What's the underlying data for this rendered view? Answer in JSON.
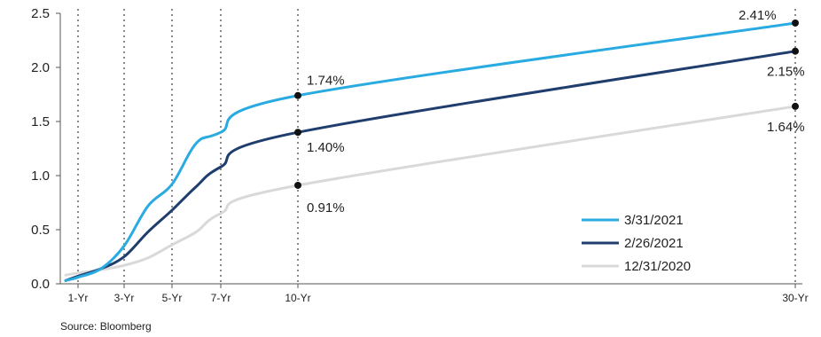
{
  "chart_data": {
    "type": "line",
    "x": [
      "1-Yr",
      "3-Yr",
      "5-Yr",
      "7-Yr",
      "10-Yr",
      "30-Yr"
    ],
    "ylim": [
      0,
      2.5
    ],
    "yticks": [
      "0.0",
      "0.5",
      "1.0",
      "1.5",
      "2.0",
      "2.5"
    ],
    "grid": "vertical dotted lines at maturities",
    "legend_position": "bottom-right",
    "series": [
      {
        "name": "3/31/2021",
        "color": "#29abe2",
        "points": [
          [
            0.3,
            0.03
          ],
          [
            1,
            0.06
          ],
          [
            2,
            0.14
          ],
          [
            3,
            0.35
          ],
          [
            4,
            0.72
          ],
          [
            5,
            0.92
          ],
          [
            6,
            1.3
          ],
          [
            7,
            1.4
          ],
          [
            10,
            1.74
          ],
          [
            30,
            2.41
          ]
        ],
        "labels": [
          {
            "x": 10,
            "y": 1.74,
            "text": "1.74%"
          },
          {
            "x": 30,
            "y": 2.41,
            "text": "2.41%"
          }
        ]
      },
      {
        "name": "2/26/2021",
        "color": "#1f3d6d",
        "points": [
          [
            0.3,
            0.03
          ],
          [
            1,
            0.07
          ],
          [
            2,
            0.14
          ],
          [
            3,
            0.25
          ],
          [
            4,
            0.48
          ],
          [
            5,
            0.68
          ],
          [
            6,
            0.9
          ],
          [
            7,
            1.08
          ],
          [
            10,
            1.4
          ],
          [
            30,
            2.15
          ]
        ],
        "labels": [
          {
            "x": 10,
            "y": 1.4,
            "text": "1.40%"
          },
          {
            "x": 30,
            "y": 2.15,
            "text": "2.15%"
          }
        ]
      },
      {
        "name": "12/31/2020",
        "color": "#d9d9d9",
        "points": [
          [
            0.3,
            0.08
          ],
          [
            1,
            0.1
          ],
          [
            2,
            0.13
          ],
          [
            3,
            0.17
          ],
          [
            4,
            0.24
          ],
          [
            5,
            0.36
          ],
          [
            6,
            0.48
          ],
          [
            7,
            0.65
          ],
          [
            10,
            0.91
          ],
          [
            30,
            1.64
          ]
        ],
        "labels": [
          {
            "x": 10,
            "y": 0.91,
            "text": "0.91%"
          },
          {
            "x": 30,
            "y": 1.64,
            "text": "1.64%"
          }
        ]
      }
    ],
    "source": "Source:  Bloomberg"
  }
}
